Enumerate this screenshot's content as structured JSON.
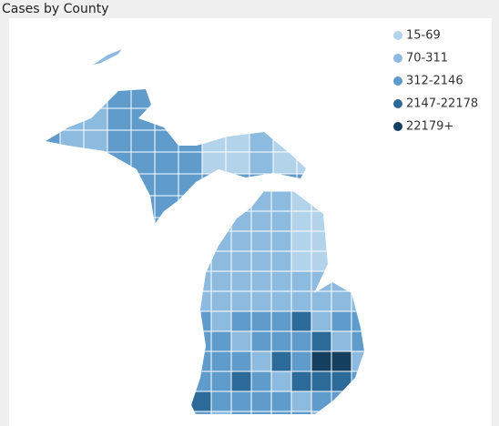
{
  "title": "Cases by County",
  "legend": [
    {
      "label": "15-69",
      "color": "#b3d3ea"
    },
    {
      "label": "70-311",
      "color": "#8dbbe0"
    },
    {
      "label": "312-2146",
      "color": "#5f9ccb"
    },
    {
      "label": "2147-22178",
      "color": "#2c6a99"
    },
    {
      "label": "22179+",
      "color": "#153f5f"
    }
  ]
}
